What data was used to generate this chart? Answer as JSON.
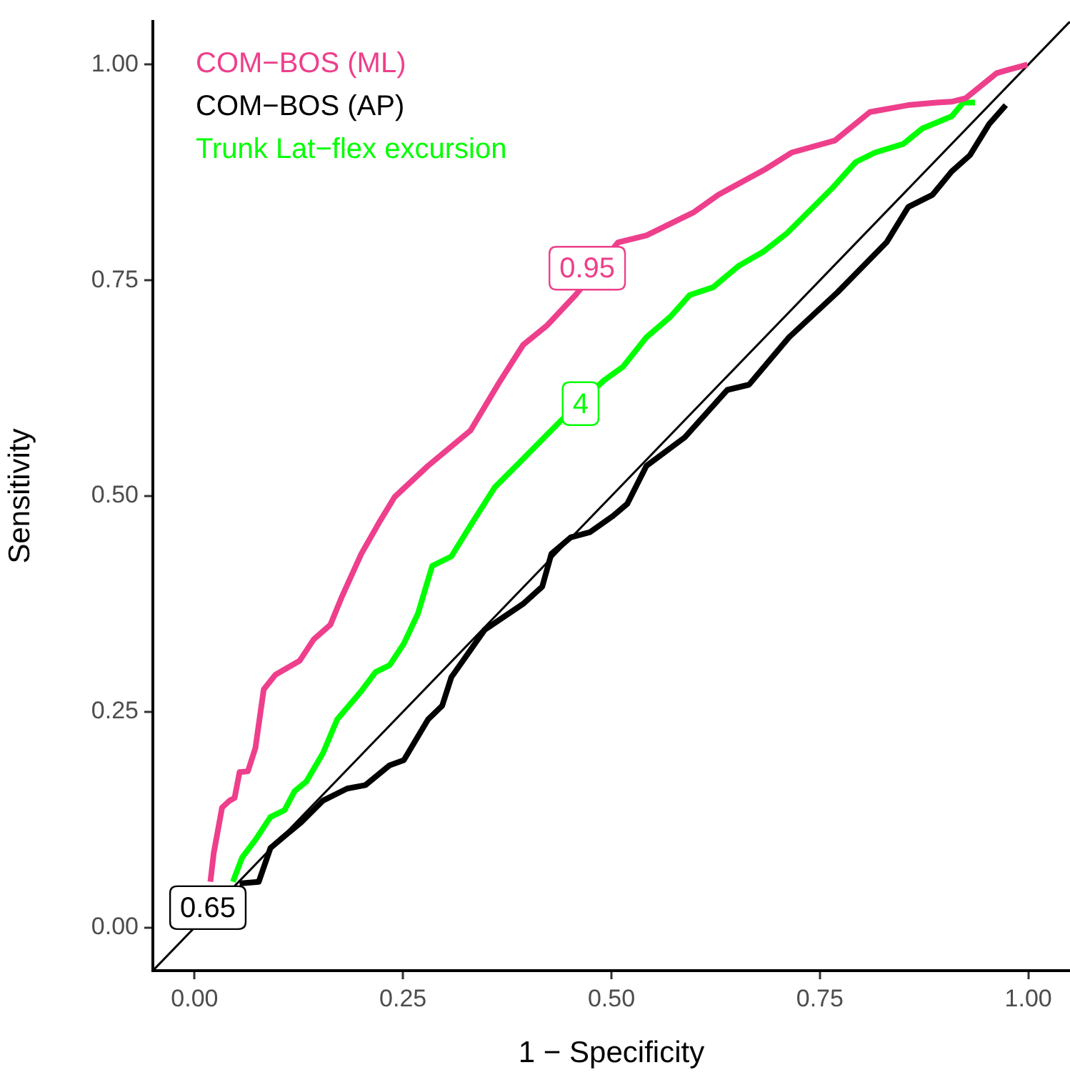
{
  "chart_data": {
    "type": "line",
    "xlabel": "1 − Specificity",
    "ylabel": "Sensitivity",
    "xlim": [
      -0.05,
      1.05
    ],
    "ylim": [
      -0.05,
      1.05
    ],
    "xticks": [
      {
        "value": 0,
        "label": "0.00"
      },
      {
        "value": 0.25,
        "label": "0.25"
      },
      {
        "value": 0.5,
        "label": "0.50"
      },
      {
        "value": 0.75,
        "label": "0.75"
      },
      {
        "value": 1,
        "label": "1.00"
      }
    ],
    "yticks": [
      {
        "value": 0,
        "label": "0.00"
      },
      {
        "value": 0.25,
        "label": "0.25"
      },
      {
        "value": 0.5,
        "label": "0.50"
      },
      {
        "value": 0.75,
        "label": "0.75"
      },
      {
        "value": 1,
        "label": "1.00"
      }
    ],
    "grid": false,
    "legend": "top left",
    "marker": "none",
    "line_style": "solid",
    "series": [
      {
        "name": "COM−BOS (ML)",
        "color": "#ee3f8c",
        "x": [
          0.019,
          0.023,
          0.033,
          0.042,
          0.048,
          0.054,
          0.064,
          0.073,
          0.083,
          0.097,
          0.126,
          0.143,
          0.163,
          0.177,
          0.2,
          0.223,
          0.24,
          0.28,
          0.331,
          0.365,
          0.394,
          0.422,
          0.457,
          0.508,
          0.542,
          0.599,
          0.628,
          0.685,
          0.716,
          0.768,
          0.81,
          0.856,
          0.89,
          0.908,
          0.925,
          0.962,
          0.976,
          0.999
        ],
        "values": [
          0.053,
          0.086,
          0.139,
          0.147,
          0.15,
          0.18,
          0.181,
          0.208,
          0.276,
          0.293,
          0.309,
          0.334,
          0.351,
          0.384,
          0.433,
          0.472,
          0.499,
          0.535,
          0.576,
          0.631,
          0.675,
          0.697,
          0.733,
          0.794,
          0.802,
          0.829,
          0.849,
          0.879,
          0.898,
          0.912,
          0.945,
          0.953,
          0.956,
          0.957,
          0.961,
          0.99,
          0.994,
          1.0
        ]
      },
      {
        "name": "COM−BOS (AP)",
        "color": "#000000",
        "x": [
          0.054,
          0.077,
          0.091,
          0.108,
          0.128,
          0.154,
          0.183,
          0.205,
          0.234,
          0.251,
          0.28,
          0.297,
          0.308,
          0.348,
          0.394,
          0.417,
          0.428,
          0.451,
          0.474,
          0.502,
          0.519,
          0.542,
          0.588,
          0.639,
          0.665,
          0.713,
          0.771,
          0.83,
          0.856,
          0.885,
          0.908,
          0.93,
          0.953,
          0.973
        ],
        "values": [
          0.051,
          0.053,
          0.092,
          0.106,
          0.122,
          0.147,
          0.161,
          0.165,
          0.188,
          0.194,
          0.241,
          0.257,
          0.29,
          0.345,
          0.375,
          0.395,
          0.433,
          0.452,
          0.458,
          0.477,
          0.491,
          0.535,
          0.568,
          0.623,
          0.629,
          0.684,
          0.736,
          0.794,
          0.835,
          0.849,
          0.876,
          0.895,
          0.931,
          0.953
        ]
      },
      {
        "name": "Trunk Lat−flex excursion",
        "color": "#00ff00",
        "x": [
          0.046,
          0.057,
          0.074,
          0.091,
          0.108,
          0.12,
          0.134,
          0.154,
          0.171,
          0.2,
          0.217,
          0.234,
          0.251,
          0.268,
          0.285,
          0.308,
          0.331,
          0.36,
          0.394,
          0.439,
          0.491,
          0.514,
          0.542,
          0.571,
          0.594,
          0.622,
          0.653,
          0.682,
          0.711,
          0.765,
          0.793,
          0.816,
          0.85,
          0.873,
          0.908,
          0.922,
          0.936
        ],
        "values": [
          0.053,
          0.081,
          0.103,
          0.128,
          0.136,
          0.158,
          0.169,
          0.202,
          0.241,
          0.274,
          0.296,
          0.304,
          0.329,
          0.364,
          0.419,
          0.43,
          0.466,
          0.51,
          0.543,
          0.587,
          0.634,
          0.65,
          0.684,
          0.708,
          0.733,
          0.742,
          0.767,
          0.783,
          0.805,
          0.857,
          0.887,
          0.898,
          0.908,
          0.926,
          0.94,
          0.956,
          0.956
        ]
      },
      {
        "color": "#000000",
        "x": [
          -0.05,
          1.05
        ],
        "values": [
          -0.05,
          1.05
        ]
      }
    ],
    "annotations": [
      {
        "text": "0.95",
        "x": 0.471,
        "y": 0.764
      },
      {
        "text": "0.65",
        "x": 0.016,
        "y": 0.023
      },
      {
        "text": "4",
        "x": 0.463,
        "y": 0.607
      }
    ]
  }
}
